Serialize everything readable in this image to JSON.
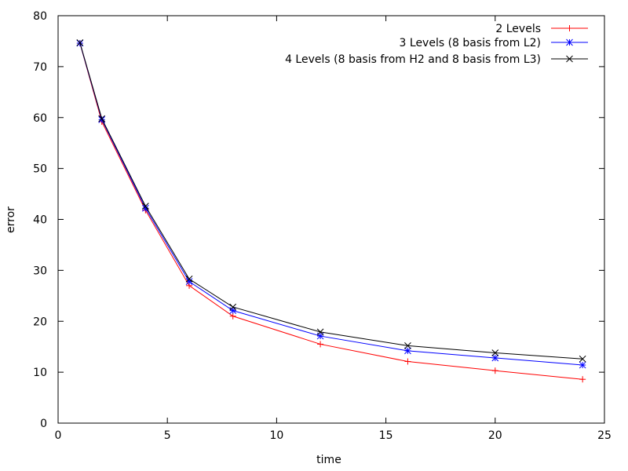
{
  "chart_data": {
    "type": "line",
    "title": "",
    "xlabel": "time",
    "ylabel": "error",
    "xlim": [
      0,
      25
    ],
    "ylim": [
      0,
      80
    ],
    "xticks": [
      0,
      5,
      10,
      15,
      20,
      25
    ],
    "yticks": [
      0,
      10,
      20,
      30,
      40,
      50,
      60,
      70,
      80
    ],
    "grid": false,
    "legend_position": "top-right",
    "series": [
      {
        "name": "2 Levels",
        "color": "#ff0000",
        "marker": "plus",
        "points": [
          [
            1,
            74.6
          ],
          [
            2,
            59.2
          ],
          [
            4,
            41.8
          ],
          [
            6,
            27.0
          ],
          [
            8,
            21.0
          ],
          [
            12,
            15.5
          ],
          [
            16,
            12.1
          ],
          [
            20,
            10.3
          ],
          [
            24,
            8.6
          ]
        ]
      },
      {
        "name": "3 Levels (8 basis from L2)",
        "color": "#0000ff",
        "marker": "star",
        "points": [
          [
            1,
            74.6
          ],
          [
            2,
            59.6
          ],
          [
            4,
            42.2
          ],
          [
            6,
            27.8
          ],
          [
            8,
            22.1
          ],
          [
            12,
            17.1
          ],
          [
            16,
            14.2
          ],
          [
            20,
            12.8
          ],
          [
            24,
            11.4
          ]
        ]
      },
      {
        "name": "4 Levels (8 basis from H2 and 8 basis from L3)",
        "color": "#000000",
        "marker": "cross",
        "points": [
          [
            1,
            74.7
          ],
          [
            2,
            59.8
          ],
          [
            4,
            42.6
          ],
          [
            6,
            28.3
          ],
          [
            8,
            22.8
          ],
          [
            12,
            17.9
          ],
          [
            16,
            15.2
          ],
          [
            20,
            13.8
          ],
          [
            24,
            12.6
          ]
        ]
      }
    ]
  }
}
